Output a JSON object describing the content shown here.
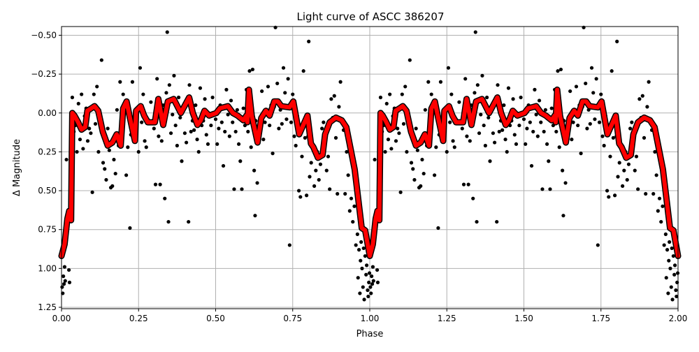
{
  "chart_data": {
    "type": "scatter",
    "title": "Light curve of ASCC 386207",
    "xlabel": "Phase",
    "ylabel": "Δ Magnitude",
    "xlim": [
      0,
      2
    ],
    "ylim": [
      1.259,
      -0.556
    ],
    "y_inverted": true,
    "grid": true,
    "x_ticks": [
      "0.00",
      "0.25",
      "0.50",
      "0.75",
      "1.00",
      "1.25",
      "1.50",
      "1.75",
      "2.00"
    ],
    "y_ticks": [
      "−0.50",
      "−0.25",
      "0.00",
      "0.25",
      "0.50",
      "0.75",
      "1.00",
      "1.25"
    ],
    "x_tick_values": [
      0,
      0.25,
      0.5,
      0.75,
      1.0,
      1.25,
      1.5,
      1.75,
      2.0
    ],
    "y_tick_values": [
      -0.5,
      -0.25,
      0,
      0.25,
      0.5,
      0.75,
      1.0,
      1.25
    ],
    "cycles_shown": 2,
    "colors": {
      "points": "#000000",
      "model": "#ff0000",
      "model_outline": "#000000",
      "grid": "#b0b0b0"
    },
    "series": [
      {
        "kind": "points",
        "phase_mag": [
          [
            0.002,
            1.12
          ],
          [
            0.004,
            1.16
          ],
          [
            0.006,
            1.05
          ],
          [
            0.008,
            1.1
          ],
          [
            0.01,
            0.99
          ],
          [
            0.012,
            1.08
          ],
          [
            0.014,
            0.74
          ],
          [
            0.016,
            0.3
          ],
          [
            0.018,
            0.68
          ],
          [
            0.02,
            0.65
          ],
          [
            0.024,
            1.01
          ],
          [
            0.026,
            1.09
          ],
          [
            0.03,
            0.46
          ],
          [
            0.033,
            0.19
          ],
          [
            0.035,
            -0.1
          ],
          [
            0.04,
            0.12
          ],
          [
            0.045,
            0.08
          ],
          [
            0.05,
            0.25
          ],
          [
            0.055,
            -0.06
          ],
          [
            0.06,
            0.17
          ],
          [
            0.065,
            -0.12
          ],
          [
            0.07,
            0.23
          ],
          [
            0.075,
            0.02
          ],
          [
            0.08,
            -0.03
          ],
          [
            0.085,
            0.18
          ],
          [
            0.09,
            0.1
          ],
          [
            0.095,
            0.13
          ],
          [
            0.1,
            0.51
          ],
          [
            0.105,
            -0.12
          ],
          [
            0.11,
            0.07
          ],
          [
            0.115,
            -0.17
          ],
          [
            0.12,
            0.25
          ],
          [
            0.125,
            0.02
          ],
          [
            0.13,
            -0.34
          ],
          [
            0.135,
            0.32
          ],
          [
            0.14,
            0.36
          ],
          [
            0.145,
            0.43
          ],
          [
            0.15,
            0.1
          ],
          [
            0.155,
            0.24
          ],
          [
            0.16,
            0.48
          ],
          [
            0.165,
            0.47
          ],
          [
            0.17,
            0.3
          ],
          [
            0.175,
            0.39
          ],
          [
            0.18,
            -0.02
          ],
          [
            0.185,
            0.21
          ],
          [
            0.19,
            -0.2
          ],
          [
            0.195,
            0.12
          ],
          [
            0.2,
            -0.12
          ],
          [
            0.205,
            -0.06
          ],
          [
            0.21,
            0.4
          ],
          [
            0.215,
            0.22
          ],
          [
            0.222,
            0.74
          ],
          [
            0.225,
            0.14
          ],
          [
            0.23,
            -0.2
          ],
          [
            0.24,
            0.08
          ],
          [
            0.245,
            -0.03
          ],
          [
            0.25,
            0.25
          ],
          [
            0.255,
            -0.29
          ],
          [
            0.26,
            0.06
          ],
          [
            0.265,
            -0.12
          ],
          [
            0.27,
            0.18
          ],
          [
            0.275,
            0.22
          ],
          [
            0.28,
            0.04
          ],
          [
            0.29,
            -0.07
          ],
          [
            0.3,
            0.1
          ],
          [
            0.305,
            0.46
          ],
          [
            0.31,
            -0.22
          ],
          [
            0.315,
            0.15
          ],
          [
            0.32,
            0.46
          ],
          [
            0.325,
            0.18
          ],
          [
            0.33,
            -0.05
          ],
          [
            0.335,
            0.55
          ],
          [
            0.34,
            -0.13
          ],
          [
            0.343,
            -0.52
          ],
          [
            0.347,
            0.7
          ],
          [
            0.35,
            -0.18
          ],
          [
            0.355,
            0.13
          ],
          [
            0.36,
            0.01
          ],
          [
            0.365,
            -0.24
          ],
          [
            0.37,
            0.08
          ],
          [
            0.375,
            0.21
          ],
          [
            0.38,
            -0.1
          ],
          [
            0.385,
            0.03
          ],
          [
            0.39,
            0.31
          ],
          [
            0.395,
            -0.02
          ],
          [
            0.4,
            0.13
          ],
          [
            0.405,
            0.19
          ],
          [
            0.412,
            0.7
          ],
          [
            0.415,
            -0.18
          ],
          [
            0.42,
            0.12
          ],
          [
            0.425,
            0.05
          ],
          [
            0.43,
            0.11
          ],
          [
            0.435,
            -0.05
          ],
          [
            0.44,
            0.17
          ],
          [
            0.445,
            0.25
          ],
          [
            0.45,
            -0.16
          ],
          [
            0.455,
            0.08
          ],
          [
            0.46,
            0.05
          ],
          [
            0.465,
            -0.09
          ],
          [
            0.47,
            0.14
          ],
          [
            0.475,
            0.2
          ],
          [
            0.48,
            0.02
          ],
          [
            0.485,
            0.08
          ],
          [
            0.49,
            -0.1
          ],
          [
            0.5,
            0.04
          ],
          [
            0.505,
            0.2
          ],
          [
            0.51,
            0.1
          ],
          [
            0.515,
            -0.05
          ],
          [
            0.52,
            0.06
          ],
          [
            0.525,
            0.34
          ],
          [
            0.53,
            0.12
          ],
          [
            0.535,
            -0.15
          ],
          [
            0.54,
            0.01
          ],
          [
            0.545,
            0.15
          ],
          [
            0.55,
            -0.08
          ],
          [
            0.555,
            0.06
          ],
          [
            0.56,
            0.49
          ],
          [
            0.565,
            0.12
          ],
          [
            0.57,
            -0.02
          ],
          [
            0.575,
            0.2
          ],
          [
            0.58,
            0.31
          ],
          [
            0.585,
            0.49
          ],
          [
            0.59,
            -0.03
          ],
          [
            0.595,
            0.08
          ],
          [
            0.6,
            -0.15
          ],
          [
            0.605,
            0.12
          ],
          [
            0.61,
            -0.27
          ],
          [
            0.615,
            0.22
          ],
          [
            0.62,
            -0.28
          ],
          [
            0.625,
            0.37
          ],
          [
            0.628,
            0.66
          ],
          [
            0.63,
            0.05
          ],
          [
            0.635,
            0.45
          ],
          [
            0.64,
            0.15
          ],
          [
            0.645,
            0.04
          ],
          [
            0.65,
            -0.14
          ],
          [
            0.655,
            0.17
          ],
          [
            0.66,
            0.06
          ],
          [
            0.665,
            0.01
          ],
          [
            0.67,
            -0.17
          ],
          [
            0.675,
            0.08
          ],
          [
            0.68,
            -0.05
          ],
          [
            0.685,
            0.26
          ],
          [
            0.69,
            -0.04
          ],
          [
            0.694,
            -0.55
          ],
          [
            0.7,
            -0.19
          ],
          [
            0.705,
            0.1
          ],
          [
            0.71,
            -0.02
          ],
          [
            0.715,
            0.07
          ],
          [
            0.72,
            -0.29
          ],
          [
            0.725,
            -0.13
          ],
          [
            0.73,
            0.04
          ],
          [
            0.735,
            -0.22
          ],
          [
            0.74,
            0.85
          ],
          [
            0.745,
            0.06
          ],
          [
            0.75,
            -0.12
          ],
          [
            0.755,
            0.15
          ],
          [
            0.76,
            0.21
          ],
          [
            0.765,
            0.02
          ],
          [
            0.77,
            0.5
          ],
          [
            0.775,
            0.54
          ],
          [
            0.78,
            0.28
          ],
          [
            0.785,
            -0.27
          ],
          [
            0.79,
            0.16
          ],
          [
            0.795,
            0.53
          ],
          [
            0.8,
            0.15
          ],
          [
            0.802,
            -0.46
          ],
          [
            0.805,
            0.41
          ],
          [
            0.81,
            0.32
          ],
          [
            0.815,
            0.22
          ],
          [
            0.82,
            0.47
          ],
          [
            0.825,
            0.37
          ],
          [
            0.83,
            0.25
          ],
          [
            0.835,
            0.43
          ],
          [
            0.84,
            0.33
          ],
          [
            0.845,
            0.1
          ],
          [
            0.85,
            0.06
          ],
          [
            0.855,
            0.16
          ],
          [
            0.86,
            0.37
          ],
          [
            0.865,
            0.28
          ],
          [
            0.87,
            0.49
          ],
          [
            0.875,
            -0.09
          ],
          [
            0.88,
            0.03
          ],
          [
            0.885,
            -0.11
          ],
          [
            0.89,
            0.16
          ],
          [
            0.895,
            0.52
          ],
          [
            0.9,
            -0.04
          ],
          [
            0.905,
            -0.2
          ],
          [
            0.91,
            0.05
          ],
          [
            0.915,
            0.11
          ],
          [
            0.92,
            0.52
          ],
          [
            0.925,
            0.25
          ],
          [
            0.93,
            0.4
          ],
          [
            0.935,
            0.63
          ],
          [
            0.94,
            0.55
          ],
          [
            0.945,
            0.7
          ],
          [
            0.95,
            0.6
          ],
          [
            0.955,
            0.85
          ],
          [
            0.96,
            0.78
          ],
          [
            0.962,
            1.06
          ],
          [
            0.965,
            0.88
          ],
          [
            0.968,
            1.16
          ],
          [
            0.97,
            0.95
          ],
          [
            0.972,
            0.83
          ],
          [
            0.975,
            1.0
          ],
          [
            0.978,
            1.12
          ],
          [
            0.98,
            0.87
          ],
          [
            0.982,
            1.2
          ],
          [
            0.985,
            0.92
          ],
          [
            0.988,
            1.04
          ],
          [
            0.99,
            0.98
          ],
          [
            0.993,
            1.14
          ],
          [
            0.995,
            1.18
          ],
          [
            0.997,
            1.09
          ],
          [
            0.999,
            1.03
          ]
        ]
      },
      {
        "kind": "model",
        "phase_mag": [
          [
            0,
            0.92
          ],
          [
            0.01,
            0.845
          ],
          [
            0.019,
            0.68
          ],
          [
            0.025,
            0.63
          ],
          [
            0.031,
            0.69
          ],
          [
            0.035,
            0.0
          ],
          [
            0.042,
            0.017
          ],
          [
            0.054,
            0.06
          ],
          [
            0.065,
            0.107
          ],
          [
            0.077,
            0.09
          ],
          [
            0.084,
            -0.014
          ],
          [
            0.096,
            -0.029
          ],
          [
            0.107,
            -0.044
          ],
          [
            0.119,
            -0.014
          ],
          [
            0.134,
            0.122
          ],
          [
            0.15,
            0.21
          ],
          [
            0.165,
            0.19
          ],
          [
            0.179,
            0.137
          ],
          [
            0.192,
            0.21
          ],
          [
            0.2,
            -0.029
          ],
          [
            0.211,
            -0.074
          ],
          [
            0.222,
            0.032
          ],
          [
            0.238,
            0.18
          ],
          [
            0.242,
            -0.014
          ],
          [
            0.257,
            -0.044
          ],
          [
            0.268,
            0.017
          ],
          [
            0.28,
            0.06
          ],
          [
            0.303,
            0.06
          ],
          [
            0.314,
            -0.09
          ],
          [
            0.33,
            0.077
          ],
          [
            0.345,
            -0.074
          ],
          [
            0.364,
            -0.09
          ],
          [
            0.387,
            0.0
          ],
          [
            0.414,
            -0.1
          ],
          [
            0.426,
            0.0
          ],
          [
            0.441,
            0.077
          ],
          [
            0.452,
            0.047
          ],
          [
            0.464,
            -0.014
          ],
          [
            0.479,
            0.017
          ],
          [
            0.502,
            0.0
          ],
          [
            0.514,
            -0.03
          ],
          [
            0.54,
            -0.044
          ],
          [
            0.556,
            0.0
          ],
          [
            0.571,
            0.017
          ],
          [
            0.59,
            0.047
          ],
          [
            0.6,
            0.017
          ],
          [
            0.603,
            0.06
          ],
          [
            0.608,
            -0.15
          ],
          [
            0.617,
            0.017
          ],
          [
            0.636,
            0.19
          ],
          [
            0.648,
            0.032
          ],
          [
            0.663,
            -0.014
          ],
          [
            0.675,
            0.017
          ],
          [
            0.69,
            -0.074
          ],
          [
            0.702,
            -0.074
          ],
          [
            0.713,
            -0.044
          ],
          [
            0.74,
            -0.036
          ],
          [
            0.752,
            -0.074
          ],
          [
            0.771,
            0.137
          ],
          [
            0.798,
            0.017
          ],
          [
            0.809,
            0.197
          ],
          [
            0.817,
            0.22
          ],
          [
            0.832,
            0.288
          ],
          [
            0.847,
            0.27
          ],
          [
            0.855,
            0.137
          ],
          [
            0.87,
            0.06
          ],
          [
            0.89,
            0.03
          ],
          [
            0.909,
            0.047
          ],
          [
            0.924,
            0.092
          ],
          [
            0.951,
            0.363
          ],
          [
            0.974,
            0.74
          ],
          [
            0.985,
            0.755
          ],
          [
            1.0,
            0.92
          ]
        ]
      }
    ]
  }
}
